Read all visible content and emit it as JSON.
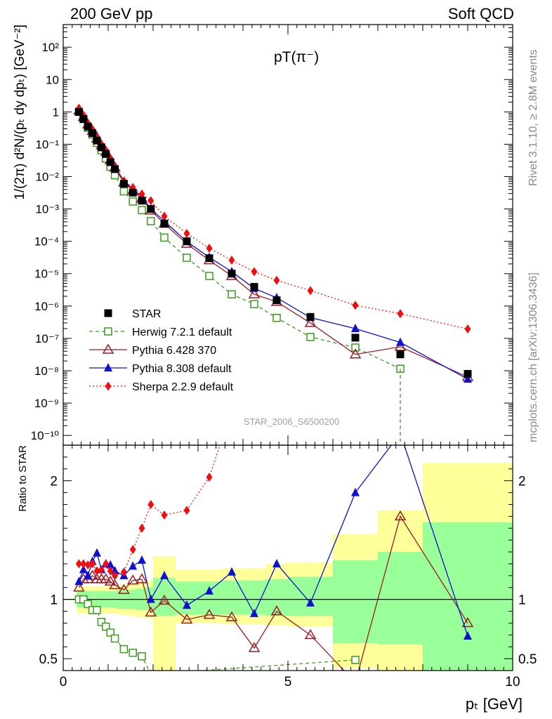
{
  "header": {
    "left": "200 GeV pp",
    "right": "Soft QCD"
  },
  "side_texts": {
    "rivet": "Rivet 3.1.10, ≥ 2.8M events",
    "mcplots": "mcplots.cern.ch [arXiv:1306.3436]"
  },
  "plot_title": "pT(π⁻)",
  "watermark": "STAR_2006_S6500200",
  "ylabel_main": "1/(2π) d²N/(pₜ dy dpₜ) [GeV⁻²]",
  "ylabel_ratio": "Ratio to STAR",
  "xlabel": "pₜ [GeV]",
  "colors": {
    "data": "#000000",
    "herwig": "#3a9a1e",
    "pythia6": "#9b1b26",
    "pythia8": "#1010d0",
    "sherpa": "#ee1010",
    "band_yellow": "#ffff99",
    "band_green": "#99ff99"
  },
  "chart_data": [
    {
      "type": "scatter",
      "panel": "main",
      "title": "pT(π⁻)",
      "xlabel": "pₜ [GeV]",
      "ylabel": "1/(2π) d²N/(pₜ dy dpₜ) [GeV⁻²]",
      "xlim": [
        0,
        10
      ],
      "ylim": [
        5e-11,
        500
      ],
      "yscale": "log",
      "y_tick_labels": [
        "10⁻¹⁰",
        "10⁻⁹",
        "10⁻⁸",
        "10⁻⁷",
        "10⁻⁶",
        "10⁻⁵",
        "10⁻⁴",
        "10⁻³",
        "10⁻²",
        "10⁻¹",
        "1",
        "10",
        "10²"
      ],
      "legend_position": "bottom-left",
      "series": [
        {
          "name": "STAR",
          "key": "data",
          "x": [
            0.35,
            0.45,
            0.55,
            0.65,
            0.75,
            0.85,
            0.95,
            1.05,
            1.15,
            1.35,
            1.55,
            1.75,
            1.95,
            2.25,
            2.75,
            3.25,
            3.75,
            4.25,
            4.75,
            5.5,
            6.5,
            7.5,
            9.0
          ],
          "y": [
            1.0,
            0.6,
            0.35,
            0.22,
            0.13,
            0.08,
            0.05,
            0.028,
            0.017,
            0.006,
            0.0032,
            0.0018,
            0.001,
            0.00035,
            0.0001,
            3e-05,
            1e-05,
            3.9e-06,
            1.5e-06,
            4.6e-07,
            1.05e-07,
            3.2e-08,
            8e-09
          ]
        },
        {
          "name": "Herwig 7.2.1 default",
          "key": "herwig",
          "x": [
            0.35,
            0.45,
            0.55,
            0.65,
            0.75,
            0.85,
            0.95,
            1.05,
            1.15,
            1.35,
            1.55,
            1.75,
            1.95,
            2.25,
            2.75,
            3.25,
            3.75,
            4.25,
            4.75,
            5.5,
            6.5,
            7.5
          ],
          "y": [
            1.0,
            0.6,
            0.32,
            0.2,
            0.11,
            0.065,
            0.036,
            0.02,
            0.011,
            0.0035,
            0.0017,
            0.00092,
            0.00042,
            0.00013,
            3.1e-05,
            8.5e-06,
            2.3e-06,
            1.15e-06,
            4.3e-07,
            1.1e-07,
            5.2e-08,
            1.15e-08
          ]
        },
        {
          "name": "Pythia 6.428 370",
          "key": "pythia6",
          "x": [
            0.35,
            0.45,
            0.55,
            0.65,
            0.75,
            0.85,
            0.95,
            1.05,
            1.15,
            1.35,
            1.55,
            1.75,
            1.95,
            2.25,
            2.75,
            3.25,
            3.75,
            4.25,
            4.75,
            5.5,
            6.5,
            7.5,
            9.0
          ],
          "y": [
            1.1,
            0.7,
            0.41,
            0.26,
            0.15,
            0.093,
            0.058,
            0.032,
            0.019,
            0.0065,
            0.0037,
            0.0021,
            0.0009,
            0.00035,
            8.4e-05,
            2.6e-05,
            8.5e-06,
            2.3e-06,
            1.35e-06,
            3e-07,
            3.2e-08,
            5.5e-08,
            6.4e-09
          ]
        },
        {
          "name": "Pythia 8.308 default",
          "key": "pythia8",
          "x": [
            0.35,
            0.45,
            0.55,
            0.65,
            0.75,
            0.85,
            0.95,
            1.05,
            1.15,
            1.35,
            1.55,
            1.75,
            1.95,
            2.25,
            2.75,
            3.25,
            3.75,
            4.25,
            4.75,
            5.5,
            6.5,
            7.5,
            9.0
          ],
          "y": [
            1.15,
            0.75,
            0.42,
            0.29,
            0.18,
            0.1,
            0.065,
            0.036,
            0.021,
            0.0072,
            0.0041,
            0.0024,
            0.001,
            0.00042,
            9.8e-05,
            3.2e-05,
            1.15e-05,
            3.5e-06,
            1.8e-06,
            4.4e-07,
            2e-07,
            7.5e-08,
            5.5e-09
          ]
        },
        {
          "name": "Sherpa 2.2.9 default",
          "key": "sherpa",
          "x": [
            0.35,
            0.45,
            0.55,
            0.65,
            0.75,
            0.85,
            0.95,
            1.05,
            1.15,
            1.35,
            1.55,
            1.75,
            1.95,
            2.25,
            2.75,
            3.25,
            3.75,
            4.25,
            4.75,
            5.5,
            6.5,
            7.5,
            9.0
          ],
          "y": [
            1.3,
            0.8,
            0.45,
            0.29,
            0.17,
            0.1,
            0.065,
            0.037,
            0.021,
            0.0074,
            0.0046,
            0.0029,
            0.0018,
            0.0006,
            0.000175,
            6.1e-05,
            2.6e-05,
            1.15e-05,
            6.2e-06,
            3e-06,
            1.05e-06,
            5.8e-07,
            1.95e-07
          ]
        }
      ]
    },
    {
      "type": "line",
      "panel": "ratio",
      "xlabel": "pₜ [GeV]",
      "ylabel": "Ratio to STAR",
      "xlim": [
        0,
        10
      ],
      "ylim": [
        0.4,
        2.3
      ],
      "x_tick_labels": [
        "0",
        "5",
        "10"
      ],
      "y_tick_labels": [
        "0.5",
        "1",
        "2"
      ],
      "reference_line": 1,
      "bands": [
        {
          "xlow": 0.3,
          "xhigh": 0.4,
          "yellow": [
            0.88,
            1.11
          ],
          "green": [
            0.93,
            1.07
          ]
        },
        {
          "xlow": 0.4,
          "xhigh": 0.5,
          "yellow": [
            0.88,
            1.11
          ],
          "green": [
            0.93,
            1.07
          ]
        },
        {
          "xlow": 0.5,
          "xhigh": 0.6,
          "yellow": [
            0.88,
            1.11
          ],
          "green": [
            0.93,
            1.07
          ]
        },
        {
          "xlow": 0.6,
          "xhigh": 0.7,
          "yellow": [
            0.88,
            1.11
          ],
          "green": [
            0.93,
            1.07
          ]
        },
        {
          "xlow": 0.7,
          "xhigh": 0.8,
          "yellow": [
            0.88,
            1.11
          ],
          "green": [
            0.93,
            1.07
          ]
        },
        {
          "xlow": 0.8,
          "xhigh": 0.9,
          "yellow": [
            0.88,
            1.11
          ],
          "green": [
            0.93,
            1.07
          ]
        },
        {
          "xlow": 0.9,
          "xhigh": 1.0,
          "yellow": [
            0.88,
            1.11
          ],
          "green": [
            0.93,
            1.07
          ]
        },
        {
          "xlow": 1.0,
          "xhigh": 1.1,
          "yellow": [
            0.88,
            1.11
          ],
          "green": [
            0.93,
            1.07
          ]
        },
        {
          "xlow": 1.1,
          "xhigh": 1.2,
          "yellow": [
            0.88,
            1.11
          ],
          "green": [
            0.93,
            1.07
          ]
        },
        {
          "xlow": 1.2,
          "xhigh": 1.4,
          "yellow": [
            0.87,
            1.12
          ],
          "green": [
            0.92,
            1.08
          ]
        },
        {
          "xlow": 1.4,
          "xhigh": 1.6,
          "yellow": [
            0.86,
            1.13
          ],
          "green": [
            0.92,
            1.08
          ]
        },
        {
          "xlow": 1.6,
          "xhigh": 1.8,
          "yellow": [
            0.85,
            1.15
          ],
          "green": [
            0.91,
            1.09
          ]
        },
        {
          "xlow": 1.8,
          "xhigh": 2.0,
          "yellow": [
            0.84,
            1.16
          ],
          "green": [
            0.91,
            1.1
          ]
        },
        {
          "xlow": 2.0,
          "xhigh": 2.5,
          "yellow": [
            0.38,
            1.36
          ],
          "green": [
            0.86,
            1.18
          ]
        },
        {
          "xlow": 2.5,
          "xhigh": 3.0,
          "yellow": [
            0.8,
            1.25
          ],
          "green": [
            0.87,
            1.15
          ]
        },
        {
          "xlow": 3.0,
          "xhigh": 3.5,
          "yellow": [
            0.8,
            1.25
          ],
          "green": [
            0.87,
            1.15
          ]
        },
        {
          "xlow": 3.5,
          "xhigh": 4.0,
          "yellow": [
            0.79,
            1.26
          ],
          "green": [
            0.87,
            1.16
          ]
        },
        {
          "xlow": 4.0,
          "xhigh": 4.5,
          "yellow": [
            0.79,
            1.26
          ],
          "green": [
            0.87,
            1.16
          ]
        },
        {
          "xlow": 4.5,
          "xhigh": 5.0,
          "yellow": [
            0.78,
            1.3
          ],
          "green": [
            0.86,
            1.17
          ]
        },
        {
          "xlow": 5.0,
          "xhigh": 6.0,
          "yellow": [
            0.77,
            1.31
          ],
          "green": [
            0.86,
            1.19
          ]
        },
        {
          "xlow": 6.0,
          "xhigh": 7.0,
          "yellow": [
            0.42,
            1.55
          ],
          "green": [
            0.63,
            1.33
          ]
        },
        {
          "xlow": 7.0,
          "xhigh": 8.0,
          "yellow": [
            0.38,
            1.75
          ],
          "green": [
            0.62,
            1.4
          ]
        },
        {
          "xlow": 8.0,
          "xhigh": 10.0,
          "yellow": [
            0.38,
            2.15
          ],
          "green": [
            0.38,
            1.65
          ]
        }
      ],
      "series": [
        {
          "name": "Herwig 7.2.1 default",
          "key": "herwig",
          "x": [
            0.35,
            0.45,
            0.55,
            0.65,
            0.75,
            0.85,
            0.95,
            1.05,
            1.15,
            1.35,
            1.55,
            1.75,
            1.95,
            6.5
          ],
          "y": [
            1.0,
            1.0,
            0.96,
            0.91,
            0.91,
            0.81,
            0.77,
            0.72,
            0.67,
            0.58,
            0.55,
            0.52,
            0.37,
            0.49
          ]
        },
        {
          "name": "Pythia 6.428 370",
          "key": "pythia6",
          "x": [
            0.35,
            0.45,
            0.55,
            0.65,
            0.75,
            0.85,
            0.95,
            1.05,
            1.15,
            1.35,
            1.55,
            1.75,
            1.95,
            2.25,
            2.75,
            3.25,
            3.75,
            4.25,
            4.75,
            5.5,
            6.5,
            7.5,
            9.0
          ],
          "y": [
            1.1,
            1.17,
            1.17,
            1.2,
            1.17,
            1.17,
            1.17,
            1.15,
            1.12,
            1.08,
            1.16,
            1.17,
            0.89,
            0.99,
            0.83,
            0.87,
            0.85,
            0.59,
            0.9,
            0.7,
            0.3,
            1.7,
            0.8
          ]
        },
        {
          "name": "Pythia 8.308 default",
          "key": "pythia8",
          "x": [
            0.35,
            0.45,
            0.55,
            0.65,
            0.75,
            0.85,
            0.95,
            1.05,
            1.15,
            1.35,
            1.55,
            1.75,
            1.95,
            2.25,
            2.75,
            3.25,
            3.75,
            4.25,
            4.75,
            5.5,
            6.5,
            7.5,
            9.0
          ],
          "y": [
            1.15,
            1.25,
            1.2,
            1.32,
            1.39,
            1.25,
            1.3,
            1.29,
            1.24,
            1.2,
            1.28,
            1.33,
            1.0,
            1.2,
            0.95,
            1.07,
            1.23,
            0.88,
            1.3,
            0.97,
            1.9,
            2.4,
            0.69
          ]
        },
        {
          "name": "Sherpa 2.2.9 default",
          "key": "sherpa",
          "x": [
            0.35,
            0.45,
            0.55,
            0.65,
            0.75,
            0.85,
            0.95,
            1.05,
            1.15,
            1.35,
            1.55,
            1.75,
            1.95,
            2.25,
            2.75,
            3.25,
            3.75
          ],
          "y": [
            1.3,
            1.3,
            1.29,
            1.3,
            1.24,
            1.25,
            1.3,
            1.24,
            1.2,
            1.23,
            1.42,
            1.6,
            1.8,
            1.71,
            1.75,
            2.03,
            2.6
          ]
        }
      ]
    }
  ]
}
